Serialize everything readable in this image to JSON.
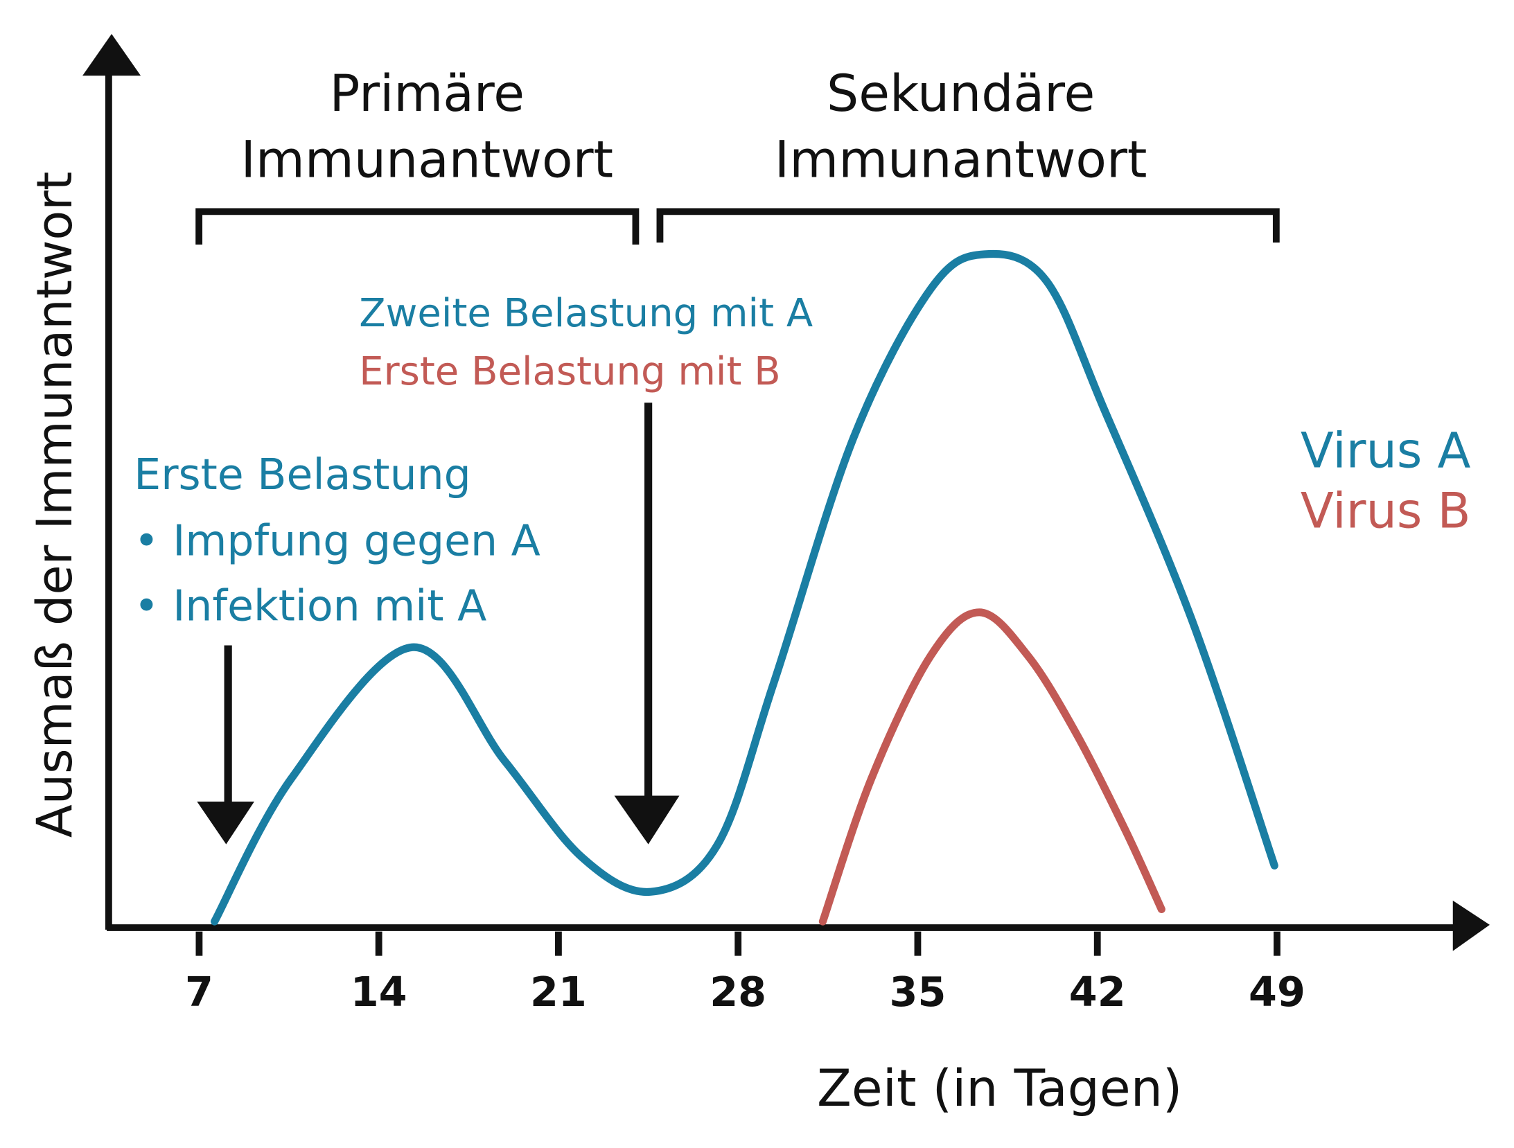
{
  "chart_data": {
    "type": "line",
    "x_label": "Zeit (in Tagen)",
    "y_label": "Ausmaß der Immunantwort",
    "xlim": [
      3.4,
      57.1
    ],
    "ylim": [
      0,
      100
    ],
    "xticks": [
      7,
      14,
      21,
      28,
      35,
      42,
      49
    ],
    "series": [
      {
        "name": "Virus A",
        "color": "#1a7ea3",
        "x": [
          7.6,
          10.6,
          15.3,
          18.9,
          21.9,
          24.6,
          27.2,
          29.4,
          32.5,
          35.5,
          37.6,
          40,
          42.3,
          45.7,
          48.9
        ],
        "values": [
          0.6,
          17,
          32,
          19,
          8,
          4,
          9.4,
          28,
          56,
          73,
          77,
          74,
          59,
          35,
          7
        ]
      },
      {
        "name": "Virus B",
        "color": "#c25a55",
        "x": [
          31.3,
          33.2,
          35.5,
          37.4,
          39.3,
          41.2,
          43.1,
          44.5
        ],
        "values": [
          0.6,
          17,
          31,
          36,
          31,
          22,
          11,
          2
        ]
      }
    ],
    "annotations": [
      {
        "text": "Primäre",
        "color": "#111111"
      },
      {
        "text": "Immunantwort",
        "color": "#111111"
      },
      {
        "text": "Sekundäre",
        "color": "#111111"
      },
      {
        "text": "Immunantwort",
        "color": "#111111"
      },
      {
        "text": "Zweite Belastung mit A",
        "color": "#1a7ea3"
      },
      {
        "text": "Erste Belastung mit B",
        "color": "#c25a55"
      },
      {
        "text": "Erste Belastung",
        "color": "#1a7ea3"
      },
      {
        "text": "• Impfung gegen A",
        "color": "#1a7ea3"
      },
      {
        "text": "• Infektion mit A",
        "color": "#1a7ea3"
      }
    ]
  }
}
